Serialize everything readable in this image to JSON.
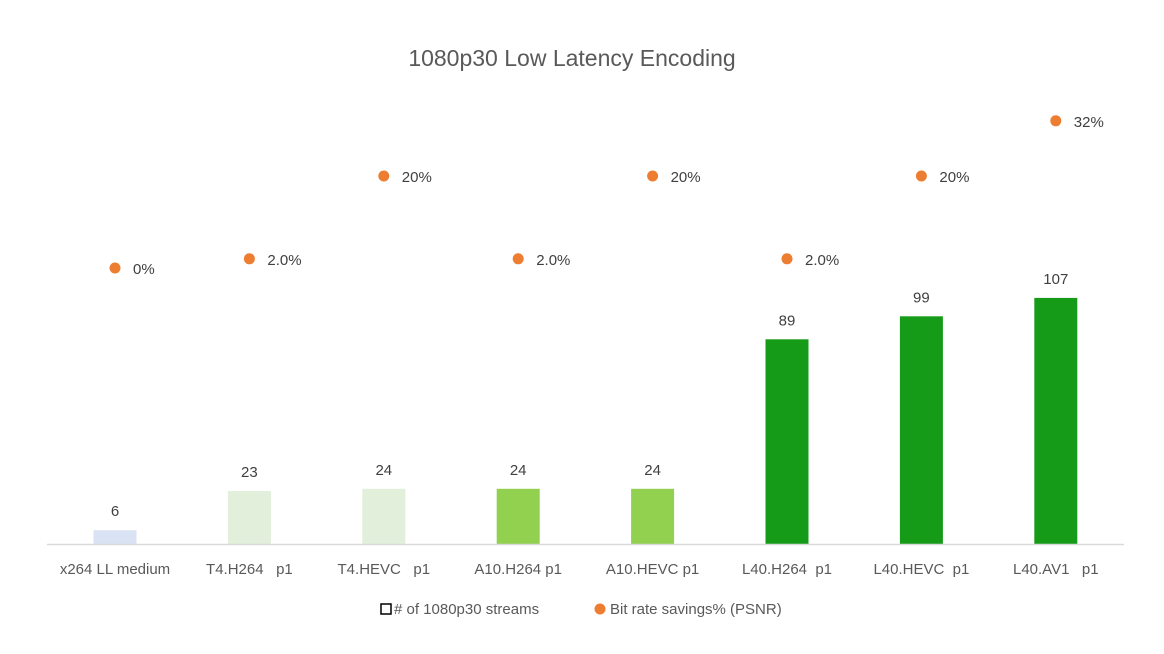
{
  "chart_data": {
    "type": "bar",
    "title": "1080p30 Low Latency Encoding",
    "categories": [
      "x264 LL medium",
      "T4.H264   p1",
      "T4.HEVC   p1",
      "A10.H264 p1",
      "A10.HEVC p1",
      "L40.H264  p1",
      "L40.HEVC  p1",
      "L40.AV1   p1"
    ],
    "series": [
      {
        "name": "# of 1080p30 streams",
        "type": "bar",
        "values": [
          6,
          23,
          24,
          24,
          24,
          89,
          99,
          107
        ],
        "labels": [
          "6",
          "23",
          "24",
          "24",
          "24",
          "89",
          "99",
          "107"
        ],
        "colors": [
          "#DAE3F3",
          "#E2EFDA",
          "#E2EFDA",
          "#92D050",
          "#92D050",
          "#169B18",
          "#169B18",
          "#169B18"
        ]
      },
      {
        "name": "Bit rate savings% (PSNR)",
        "type": "scatter",
        "values": [
          0,
          2,
          20,
          2,
          20,
          2,
          20,
          32
        ],
        "labels": [
          "0%",
          "2.0%",
          "20%",
          "2.0%",
          "20%",
          "2.0%",
          "20%",
          "32%"
        ],
        "color": "#ED7D31"
      }
    ],
    "xlabel": "",
    "ylabel": "",
    "grid": false,
    "legend": "bottom"
  }
}
